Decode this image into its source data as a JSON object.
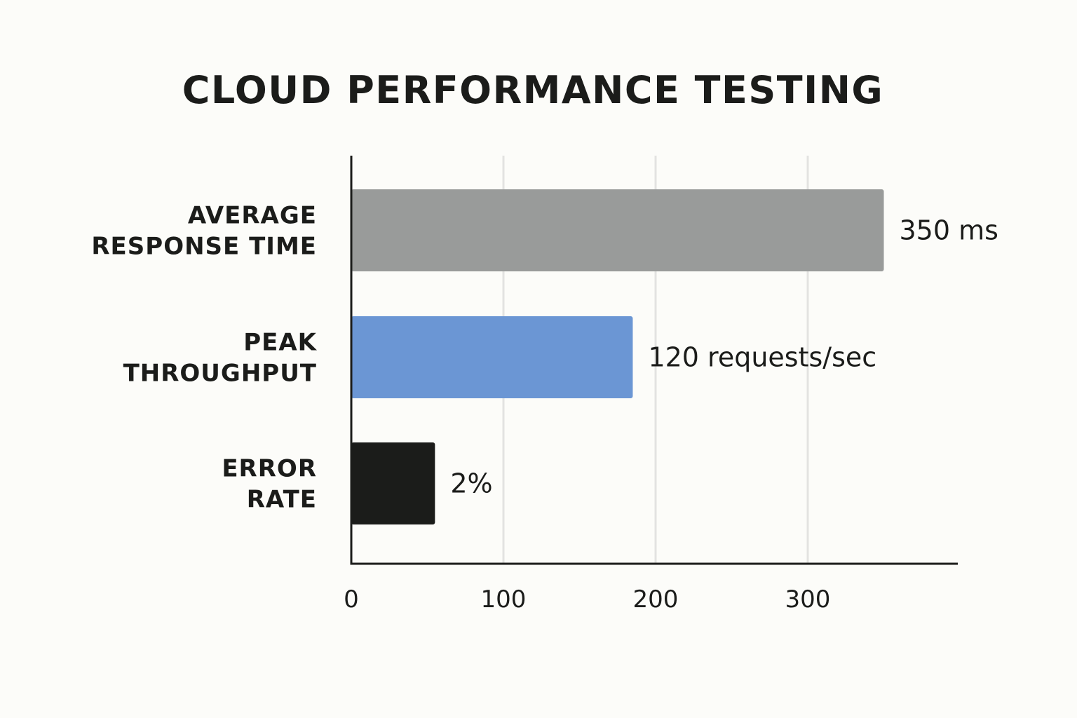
{
  "chart_data": {
    "type": "bar",
    "orientation": "horizontal",
    "title": "CLOUD PERFORMANCE TESTING",
    "categories": [
      [
        "AVERAGE",
        "RESPONSE TIME"
      ],
      [
        "PEAK",
        "THROUGHPUT"
      ],
      [
        "ERROR",
        "RATE"
      ]
    ],
    "values": [
      350,
      185,
      55
    ],
    "value_labels": [
      "350 ms",
      "120 requests/sec",
      "2%"
    ],
    "colors": [
      "#999b9a",
      "#6b96d4",
      "#1b1c1a"
    ],
    "xlim": [
      0,
      395
    ],
    "xticks": [
      0,
      100,
      200,
      300
    ],
    "gridlines": [
      100,
      200,
      300
    ],
    "grid": true,
    "legend": "none"
  }
}
